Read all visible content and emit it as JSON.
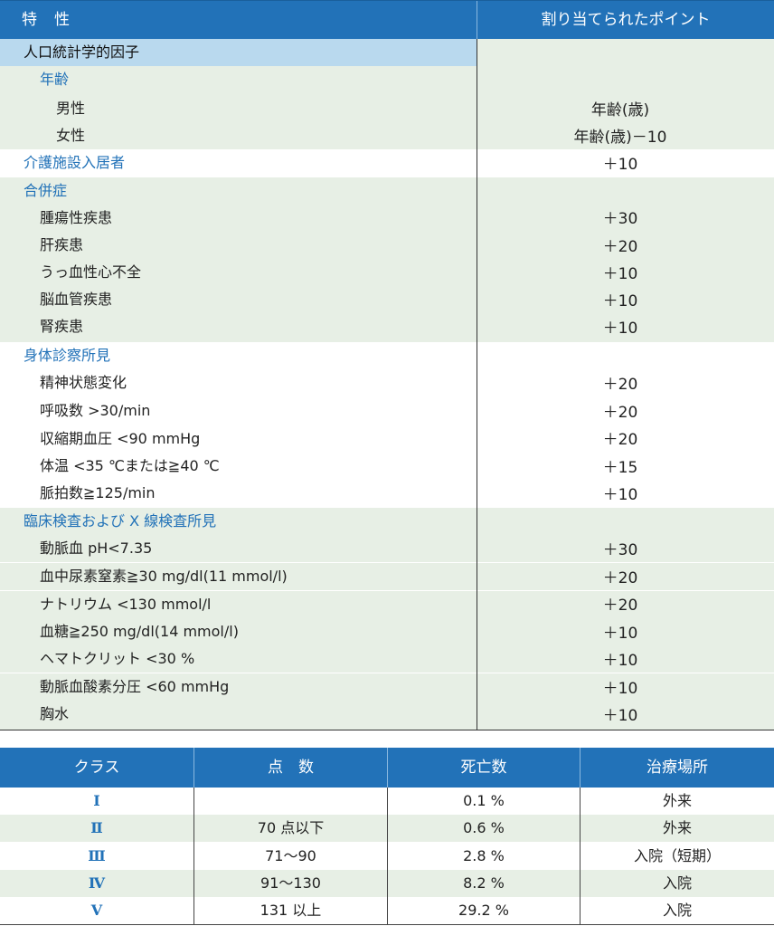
{
  "table1": {
    "header": {
      "col1": "特　性",
      "col2": "割り当てられたポイント"
    },
    "demographics_label": "人口統計学的因子",
    "age_label": "年齢",
    "male_label": "男性",
    "male_value": "年齢(歳)",
    "female_label": "女性",
    "female_value": "年齢(歳)－10",
    "nursing_label": "介護施設入居者",
    "nursing_value": "＋10",
    "comorbidity_label": "合併症",
    "comorbidities": [
      {
        "label": "腫瘍性疾患",
        "value": "＋30"
      },
      {
        "label": "肝疾患",
        "value": "＋20"
      },
      {
        "label": "うっ血性心不全",
        "value": "＋10"
      },
      {
        "label": "脳血管疾患",
        "value": "＋10"
      },
      {
        "label": "腎疾患",
        "value": "＋10"
      }
    ],
    "physical_label": "身体診察所見",
    "physical": [
      {
        "label": "精神状態変化",
        "value": "＋20"
      },
      {
        "label": "呼吸数 >30/min",
        "value": "＋20"
      },
      {
        "label": "収縮期血圧 <90 mmHg",
        "value": "＋20"
      },
      {
        "label": "体温 <35 ℃または≧40 ℃",
        "value": "＋15"
      },
      {
        "label": "脈拍数≧125/min",
        "value": "＋10"
      }
    ],
    "lab_label": "臨床検査および X 線検査所見",
    "lab": [
      {
        "label": "動脈血 pH<7.35",
        "value": "＋30"
      },
      {
        "label": "血中尿素窒素≧30 mg/dl(11 mmol/l)",
        "value": "＋20"
      },
      {
        "label": "ナトリウム <130 mmol/l",
        "value": "＋20"
      },
      {
        "label": "血糖≧250 mg/dl(14 mmol/l)",
        "value": "＋10"
      },
      {
        "label": "ヘマトクリット <30 %",
        "value": "＋10"
      },
      {
        "label": "動脈血酸素分圧 <60 mmHg",
        "value": "＋10"
      },
      {
        "label": "胸水",
        "value": "＋10"
      }
    ]
  },
  "table2": {
    "headers": [
      "クラス",
      "点　数",
      "死亡数",
      "治療場所"
    ],
    "rows": [
      {
        "class": "Ⅰ",
        "points": "",
        "mortality": "0.1 %",
        "place": "外来"
      },
      {
        "class": "Ⅱ",
        "points": "70 点以下",
        "mortality": "0.6 %",
        "place": "外来"
      },
      {
        "class": "Ⅲ",
        "points": "71～90",
        "mortality": "2.8 %",
        "place": "入院（短期）"
      },
      {
        "class": "Ⅳ",
        "points": "91～130",
        "mortality": "8.2 %",
        "place": "入院"
      },
      {
        "class": "Ⅴ",
        "points": "131 以上",
        "mortality": "29.2 %",
        "place": "入院"
      }
    ]
  },
  "colors": {
    "header_blue": "#2272b8",
    "category_blue": "#b9d9ee",
    "row_green": "#e7efe5",
    "label_blue": "#2272b8"
  }
}
